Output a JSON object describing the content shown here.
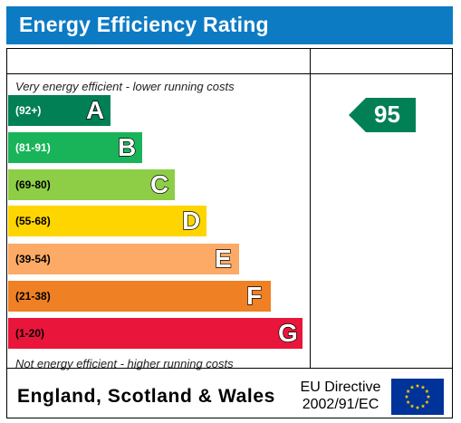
{
  "title": "Energy Efficiency Rating",
  "top_caption": "Very energy efficient - lower running costs",
  "bottom_caption": "Not energy efficient - higher running costs",
  "bands": [
    {
      "range": "(92+)",
      "letter": "A",
      "color": "#008054",
      "text_color": "#ffffff"
    },
    {
      "range": "(81-91)",
      "letter": "B",
      "color": "#19b459",
      "text_color": "#ffffff"
    },
    {
      "range": "(69-80)",
      "letter": "C",
      "color": "#8dce46",
      "text_color": "#000000"
    },
    {
      "range": "(55-68)",
      "letter": "D",
      "color": "#ffd500",
      "text_color": "#000000"
    },
    {
      "range": "(39-54)",
      "letter": "E",
      "color": "#fcaa65",
      "text_color": "#000000"
    },
    {
      "range": "(21-38)",
      "letter": "F",
      "color": "#ef8023",
      "text_color": "#000000"
    },
    {
      "range": "(1-20)",
      "letter": "G",
      "color": "#e9153b",
      "text_color": "#000000"
    }
  ],
  "rating": {
    "value": "95",
    "color": "#008054"
  },
  "footer": {
    "region": "England, Scotland & Wales",
    "directive_line1": "EU Directive",
    "directive_line2": "2002/91/EC"
  },
  "flag": {
    "icon": "eu-flag-icon",
    "background": "#003399",
    "stars": "#ffcc00"
  }
}
